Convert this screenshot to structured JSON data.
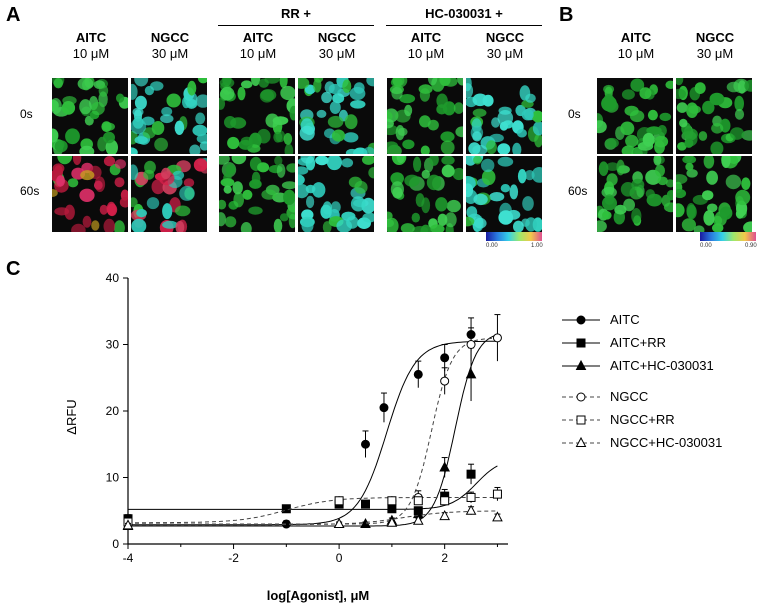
{
  "panels": {
    "a_letter": "A",
    "b_letter": "B",
    "c_letter": "C"
  },
  "panel_a": {
    "group_rr": "RR +",
    "group_hc": "HC-030031 +",
    "columns": [
      {
        "name": "AITC",
        "conc": "10 μM"
      },
      {
        "name": "NGCC",
        "conc": "30 μM"
      },
      {
        "name": "AITC",
        "conc": "10 μM"
      },
      {
        "name": "NGCC",
        "conc": "30 μM"
      },
      {
        "name": "AITC",
        "conc": "10 μM"
      },
      {
        "name": "NGCC",
        "conc": "30 μM"
      }
    ],
    "rows": [
      "0s",
      "60s"
    ],
    "colorbar_min": "0.00",
    "colorbar_max": "1.00"
  },
  "panel_b": {
    "columns": [
      {
        "name": "AITC",
        "conc": "10 μM"
      },
      {
        "name": "NGCC",
        "conc": "30 μM"
      }
    ],
    "rows": [
      "0s",
      "60s"
    ],
    "colorbar_min": "0.00",
    "colorbar_max": "0.90"
  },
  "colors": {
    "cells_green": "#2fbf3c",
    "cells_cyan": "#34d6c4",
    "cells_red": "#d6204a"
  },
  "chart_data": {
    "type": "scatter",
    "xlabel": "log[Agonist], μM",
    "ylabel": "ΔRFU",
    "xlim": [
      -4,
      3.2
    ],
    "ylim": [
      0,
      40
    ],
    "xticks": [
      -4,
      -2,
      0,
      2
    ],
    "yticks": [
      0,
      10,
      20,
      30,
      40
    ],
    "legend_position": "right",
    "series": [
      {
        "name": "AITC",
        "marker": "circle",
        "filled": true,
        "dashed": false,
        "x": [
          -4,
          -1,
          0.5,
          0.85,
          1.5,
          2,
          2.5
        ],
        "y": [
          3,
          3,
          15,
          20.5,
          25.5,
          28,
          31.5
        ],
        "err": [
          0.8,
          0.5,
          2,
          2.2,
          2,
          2,
          2.5
        ],
        "fit": {
          "bottom": 2.9,
          "top": 30.5,
          "ec50": 0.9,
          "hill": 1.6
        }
      },
      {
        "name": "AITC+RR",
        "marker": "square",
        "filled": true,
        "dashed": false,
        "x": [
          -4,
          -1,
          0,
          0.5,
          1,
          1.5,
          2,
          2.5
        ],
        "y": [
          3.8,
          5.3,
          6,
          6,
          5.3,
          5,
          7.2,
          10.5
        ],
        "err": [
          0.6,
          0.5,
          0.4,
          0.5,
          0.5,
          0.5,
          1,
          1.5
        ],
        "fit": {
          "bottom": 5.2,
          "top": 13,
          "ec50": 2.6,
          "hill": 1.8
        }
      },
      {
        "name": "AITC+HC-030031",
        "marker": "triangle",
        "filled": true,
        "dashed": false,
        "x": [
          -4,
          0,
          0.5,
          1,
          1.5,
          2,
          2.5
        ],
        "y": [
          2.7,
          3,
          3,
          3.5,
          4.5,
          11.5,
          25.5
        ],
        "err": [
          0.3,
          0.3,
          0.3,
          0.4,
          0.6,
          1.5,
          4
        ],
        "fit": {
          "bottom": 2.7,
          "top": 32,
          "ec50": 2.2,
          "hill": 2.2
        }
      },
      {
        "name": "NGCC",
        "marker": "circle",
        "filled": false,
        "dashed": true,
        "x": [
          -4,
          0,
          1,
          1.5,
          2,
          2.5,
          3
        ],
        "y": [
          3,
          6.5,
          6.5,
          7,
          24.5,
          30,
          31
        ],
        "err": [
          0.5,
          0.5,
          0.5,
          1,
          2,
          2.5,
          3.5
        ],
        "fit": {
          "bottom": 3,
          "top": 31,
          "ec50": 1.75,
          "hill": 2.2
        }
      },
      {
        "name": "NGCC+RR",
        "marker": "square",
        "filled": false,
        "dashed": true,
        "x": [
          -4,
          0,
          1,
          1.5,
          2,
          2.5,
          3
        ],
        "y": [
          3.3,
          6.5,
          6.5,
          6.5,
          6.5,
          7,
          7.5
        ],
        "err": [
          0.5,
          0.5,
          0.5,
          0.5,
          0.5,
          0.8,
          1
        ],
        "fit": {
          "bottom": 3.2,
          "top": 7,
          "ec50": -1,
          "hill": 1
        }
      },
      {
        "name": "NGCC+HC-030031",
        "marker": "triangle",
        "filled": false,
        "dashed": true,
        "x": [
          -4,
          0,
          1,
          1.5,
          2,
          2.5,
          3
        ],
        "y": [
          2.8,
          3,
          3.2,
          3.5,
          4.2,
          5,
          4
        ],
        "err": [
          0.3,
          0.3,
          0.3,
          0.4,
          0.5,
          0.6,
          0.5
        ],
        "fit": {
          "bottom": 2.9,
          "top": 5,
          "ec50": 1.2,
          "hill": 1
        }
      }
    ]
  }
}
